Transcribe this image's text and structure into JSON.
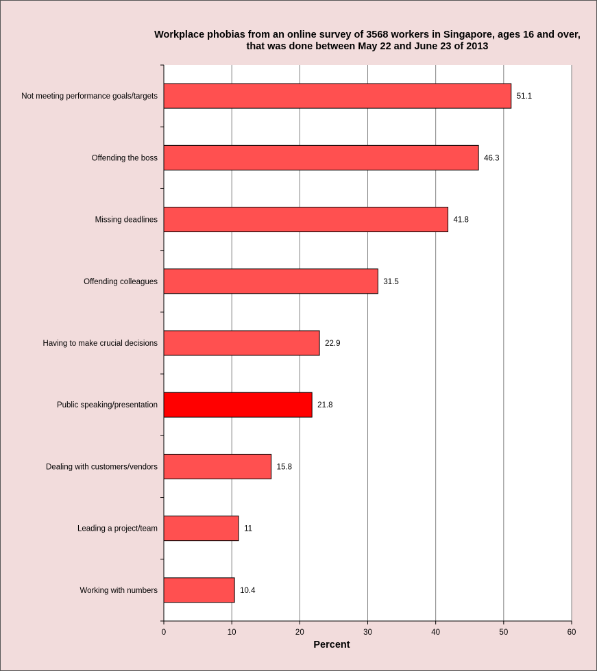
{
  "chart_data": {
    "type": "bar",
    "orientation": "horizontal",
    "title": [
      "Workplace phobias from an online survey of 3568 workers in Singapore, ages 16 and over,",
      "that was done between May 22 and June 23 of 2013"
    ],
    "xlabel": "Percent",
    "ylabel": "",
    "xlim": [
      0,
      60
    ],
    "xticks": [
      "0",
      "10",
      "20",
      "30",
      "40",
      "50",
      "60"
    ],
    "grid": "vertical",
    "categories": [
      "Not meeting performance goals/targets",
      "Offending the boss",
      "Missing deadlines",
      "Offending colleagues",
      "Having to make crucial decisions",
      "Public speaking/presentation",
      "Dealing with customers/vendors",
      "Leading a project/team",
      "Working with numbers"
    ],
    "values": [
      51.1,
      46.3,
      41.8,
      31.5,
      22.9,
      21.8,
      15.8,
      11,
      10.4
    ],
    "value_labels": [
      "51.1",
      "46.3",
      "41.8",
      "31.5",
      "22.9",
      "21.8",
      "15.8",
      "11",
      "10.4"
    ],
    "highlight_category": "Public speaking/presentation",
    "colors": {
      "bar": "#ff5050",
      "highlight": "#ff0000",
      "bar_stroke": "#000000",
      "plot_background": "#ffffff",
      "page_background": "#f2dcdc",
      "grid": "#808080"
    }
  }
}
